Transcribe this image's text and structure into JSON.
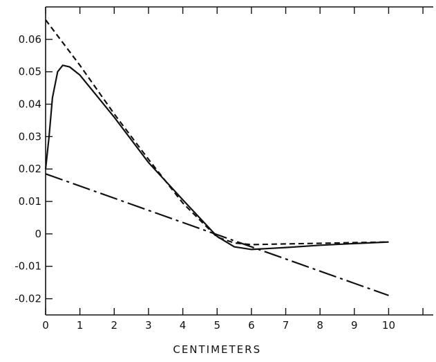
{
  "chart_data": {
    "type": "line",
    "title": "",
    "xlabel": "CENTIMETERS",
    "ylabel": "",
    "xlim": [
      0,
      11.3
    ],
    "ylim": [
      -0.025,
      0.07
    ],
    "grid": false,
    "x_ticks": [
      0,
      1,
      2,
      3,
      4,
      5,
      6,
      7,
      8,
      9,
      10
    ],
    "x_tick_labels": [
      "0",
      "1",
      "2",
      "3",
      "4",
      "5",
      "6",
      "7",
      "8",
      "9",
      "10"
    ],
    "y_ticks": [
      0.06,
      0.05,
      0.04,
      0.03,
      0.02,
      0.01,
      0,
      -0.01,
      -0.02
    ],
    "y_tick_labels": [
      "0.06",
      "0.05",
      "0.04",
      "0.03",
      "0.02",
      "0.01",
      "0",
      "-0.01",
      "-0.02"
    ],
    "series": [
      {
        "style": "solid",
        "x": [
          0,
          0.1,
          0.2,
          0.35,
          0.5,
          0.7,
          1.0,
          2.0,
          3.0,
          4.0,
          5.0,
          5.5,
          6.0,
          7.0,
          8.0,
          9.0,
          10.0
        ],
        "y": [
          0.02,
          0.03,
          0.042,
          0.05,
          0.052,
          0.0515,
          0.049,
          0.036,
          0.022,
          0.0105,
          -0.0008,
          -0.004,
          -0.0048,
          -0.0042,
          -0.0035,
          -0.003,
          -0.0025
        ]
      },
      {
        "style": "dashed",
        "x": [
          0,
          1,
          2,
          3,
          4,
          5,
          5.5,
          6,
          7,
          8,
          9,
          10
        ],
        "y": [
          0.066,
          0.052,
          0.037,
          0.023,
          0.0095,
          -0.001,
          -0.0028,
          -0.0033,
          -0.0031,
          -0.0029,
          -0.0027,
          -0.0025
        ]
      },
      {
        "style": "dashdot",
        "x": [
          0,
          10
        ],
        "y": [
          0.0185,
          -0.019
        ]
      }
    ]
  }
}
